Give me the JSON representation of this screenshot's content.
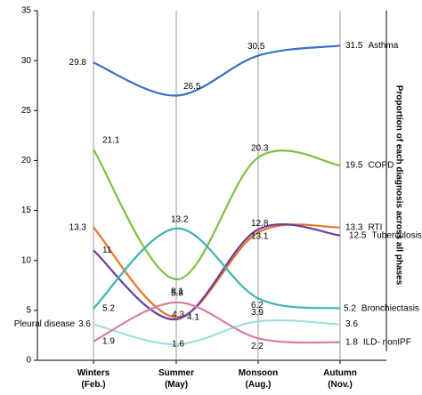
{
  "chart_data": {
    "type": "line",
    "y_axis_label": "Proportion of each diagnosis across all phases",
    "categories": [
      "Winters (Feb.)",
      "Summer (May)",
      "Monsoon (Aug.)",
      "Autumn (Nov.)"
    ],
    "ylim": [
      0,
      35
    ],
    "yticks": [
      0,
      5,
      10,
      15,
      20,
      25,
      30,
      35
    ],
    "smooth": true,
    "series": [
      {
        "name": "Asthma",
        "color": "#3a6fc4",
        "values": [
          29.8,
          26.5,
          30.5,
          31.5
        ],
        "name_position": "end"
      },
      {
        "name": "COPD",
        "color": "#7dc242",
        "values": [
          21.1,
          8.1,
          20.3,
          19.5
        ],
        "name_position": "end"
      },
      {
        "name": "RTI",
        "color": "#e8752a",
        "values": [
          13.3,
          4.3,
          12.8,
          13.3
        ],
        "name_position": "end"
      },
      {
        "name": "Tuberculosis",
        "color": "#6a3fa0",
        "values": [
          11,
          4.1,
          13.1,
          12.5
        ],
        "name_position": "end"
      },
      {
        "name": "Bronchiectasis",
        "color": "#3fb3b3",
        "values": [
          5.2,
          13.2,
          6.2,
          5.2
        ],
        "name_position": "end"
      },
      {
        "name": "Pleural disease",
        "color": "#9fe0e0",
        "values": [
          3.6,
          1.6,
          3.9,
          3.6
        ],
        "name_position": "start"
      },
      {
        "name": "ILD- nonIPF",
        "color": "#d77fa0",
        "values": [
          1.9,
          5.8,
          2.2,
          1.8
        ],
        "name_position": "end"
      }
    ]
  }
}
